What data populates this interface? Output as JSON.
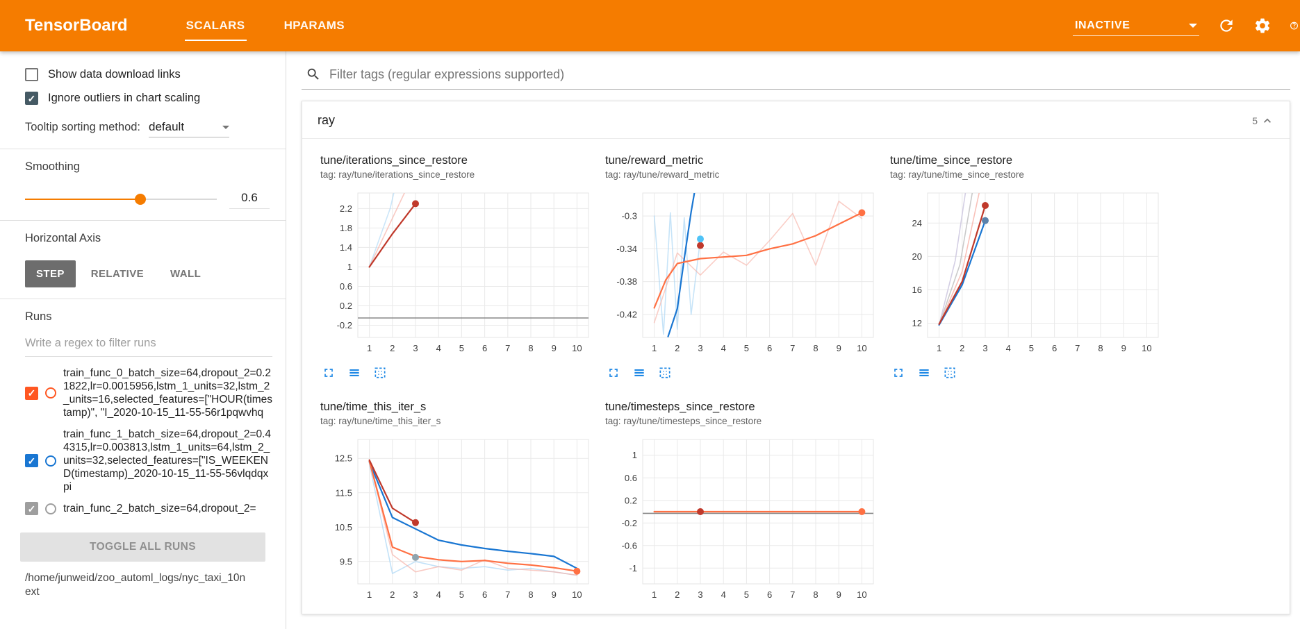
{
  "ui_colors": {
    "header_orange": "#f57c00",
    "accent_orange": "#ff7043",
    "icon_blue": "#1e88e5",
    "checkbox_dark": "#455a64"
  },
  "header": {
    "title": "TensorBoard",
    "tabs": [
      {
        "label": "SCALARS",
        "active": true
      },
      {
        "label": "HPARAMS",
        "active": false
      }
    ],
    "status_dropdown": "INACTIVE",
    "icons": [
      "chevron-down-icon",
      "refresh-icon",
      "settings-gear-icon",
      "help-icon"
    ]
  },
  "sidebar": {
    "show_download_links": {
      "label": "Show data download links",
      "checked": false
    },
    "ignore_outliers": {
      "label": "Ignore outliers in chart scaling",
      "checked": true
    },
    "tooltip_sorting": {
      "label": "Tooltip sorting method:",
      "value": "default"
    },
    "smoothing": {
      "label": "Smoothing",
      "value": "0.6",
      "percent": 60
    },
    "horizontal_axis": {
      "label": "Horizontal Axis",
      "options": [
        "STEP",
        "RELATIVE",
        "WALL"
      ],
      "selected": "STEP"
    },
    "runs": {
      "label": "Runs",
      "filter_placeholder": "Write a regex to filter runs",
      "items": [
        {
          "name": "train_func_0_batch_size=64,dropout_2=0.21822,lr=0.0015956,lstm_1_units=32,lstm_2_units=16,selected_features=[\"HOUR(timestamp)\", \"I_2020-10-15_11-55-56r1pqwvhq",
          "checked": true,
          "color": "#ff5722"
        },
        {
          "name": "train_func_1_batch_size=64,dropout_2=0.44315,lr=0.003813,lstm_1_units=64,lstm_2_units=32,selected_features=[\"IS_WEEKEND(timestamp)_2020-10-15_11-55-56vlqdqxpi",
          "checked": true,
          "color": "#1976d2"
        },
        {
          "name": "train_func_2_batch_size=64,dropout_2=",
          "checked": true,
          "color": "#9e9e9e"
        }
      ],
      "toggle_all_label": "TOGGLE ALL RUNS",
      "log_path": "/home/junweid/zoo_automl_logs/nyc_taxi_10next"
    }
  },
  "main": {
    "filter_placeholder": "Filter tags (regular expressions supported)",
    "section": {
      "title": "ray",
      "count": "5"
    }
  },
  "chart_data": [
    {
      "type": "line",
      "title": "tune/iterations_since_restore",
      "tag": "tag: ray/tune/iterations_since_restore",
      "xlim": [
        0.5,
        10.5
      ],
      "ylim": [
        -0.45,
        2.52
      ],
      "xticks": [
        1,
        2,
        3,
        4,
        5,
        6,
        7,
        8,
        9,
        10
      ],
      "yticks": [
        -0.2,
        0.2,
        0.6,
        1,
        1.4,
        1.8,
        2.2
      ],
      "grid": true,
      "series": [
        {
          "name": "train_func_1 (raw)",
          "color": "#a9d6f5",
          "width": 1.6,
          "opacity": 0.6,
          "points": [
            [
              1,
              1
            ],
            [
              1.9,
              2.2
            ],
            [
              2.4,
              3.2
            ]
          ]
        },
        {
          "name": "train_func_0 (raw)",
          "color": "#f7b3a9",
          "width": 1.6,
          "opacity": 0.7,
          "points": [
            [
              1,
              1
            ],
            [
              2,
              2
            ],
            [
              3,
              3
            ]
          ]
        },
        {
          "name": "zero baseline",
          "color": "#888888",
          "width": 1.6,
          "opacity": 1,
          "points": [
            [
              0.5,
              -0.05
            ],
            [
              10.5,
              -0.05
            ]
          ]
        },
        {
          "name": "train_func_0",
          "color": "#c0392b",
          "width": 2.2,
          "opacity": 1,
          "points": [
            [
              1,
              1
            ],
            [
              2,
              1.68
            ],
            [
              3,
              2.3
            ]
          ]
        }
      ],
      "dots": [
        {
          "x": 3,
          "y": 2.3,
          "color": "#c0392b"
        }
      ]
    },
    {
      "type": "line",
      "title": "tune/reward_metric",
      "tag": "tag: ray/tune/reward_metric",
      "xlim": [
        0.5,
        10.5
      ],
      "ylim": [
        -0.448,
        -0.272
      ],
      "xticks": [
        1,
        2,
        3,
        4,
        5,
        6,
        7,
        8,
        9,
        10
      ],
      "yticks": [
        -0.42,
        -0.38,
        -0.34,
        -0.3
      ],
      "grid": true,
      "series": [
        {
          "name": "train_func_1 (raw)",
          "color": "#a9d6f5",
          "width": 1.6,
          "opacity": 0.65,
          "points": [
            [
              1,
              -0.3
            ],
            [
              1.4,
              -0.444
            ],
            [
              1.7,
              -0.296
            ],
            [
              2,
              -0.438
            ],
            [
              2.3,
              -0.302
            ],
            [
              2.6,
              -0.42
            ],
            [
              3,
              -0.328
            ]
          ]
        },
        {
          "name": "train_func_0 (raw)",
          "color": "#f7b3a9",
          "width": 1.6,
          "opacity": 0.65,
          "points": [
            [
              1,
              -0.43
            ],
            [
              2,
              -0.345
            ],
            [
              3,
              -0.372
            ],
            [
              4,
              -0.344
            ],
            [
              5,
              -0.36
            ],
            [
              6,
              -0.33
            ],
            [
              7,
              -0.297
            ],
            [
              8,
              -0.36
            ],
            [
              9,
              -0.282
            ],
            [
              10,
              -0.303
            ]
          ]
        },
        {
          "name": "train_func_1",
          "color": "#1976d2",
          "width": 2.2,
          "opacity": 1,
          "points": [
            [
              1.6,
              -0.447
            ],
            [
              2,
              -0.413
            ],
            [
              2.3,
              -0.352
            ],
            [
              2.6,
              -0.295
            ],
            [
              2.8,
              -0.262
            ]
          ]
        },
        {
          "name": "train_func_0",
          "color": "#ff7043",
          "width": 2.2,
          "opacity": 1,
          "points": [
            [
              1,
              -0.412
            ],
            [
              1.5,
              -0.378
            ],
            [
              2,
              -0.358
            ],
            [
              3,
              -0.352
            ],
            [
              4,
              -0.35
            ],
            [
              5,
              -0.348
            ],
            [
              6,
              -0.34
            ],
            [
              7,
              -0.334
            ],
            [
              8,
              -0.324
            ],
            [
              9,
              -0.31
            ],
            [
              10,
              -0.296
            ]
          ]
        }
      ],
      "dots": [
        {
          "x": 3,
          "y": -0.336,
          "color": "#c0392b"
        },
        {
          "x": 3,
          "y": -0.328,
          "color": "#4fc3f7"
        },
        {
          "x": 10,
          "y": -0.296,
          "color": "#ff7043"
        }
      ]
    },
    {
      "type": "line",
      "title": "tune/time_since_restore",
      "tag": "tag: ray/tune/time_since_restore",
      "xlim": [
        0.5,
        10.5
      ],
      "ylim": [
        10.3,
        27.6
      ],
      "xticks": [
        1,
        2,
        3,
        4,
        5,
        6,
        7,
        8,
        9,
        10
      ],
      "yticks": [
        12,
        16,
        20,
        24
      ],
      "grid": true,
      "series": [
        {
          "name": "raw a",
          "color": "#c9c3dd",
          "width": 1.6,
          "opacity": 0.8,
          "points": [
            [
              1,
              11.8
            ],
            [
              1.7,
              19.5
            ],
            [
              2.15,
              27.8
            ]
          ]
        },
        {
          "name": "raw b",
          "color": "#bdbdbd",
          "width": 1.6,
          "opacity": 0.8,
          "points": [
            [
              1,
              11.8
            ],
            [
              1.9,
              19
            ],
            [
              2.45,
              27.8
            ]
          ]
        },
        {
          "name": "raw c",
          "color": "#f7b3a9",
          "width": 1.6,
          "opacity": 0.8,
          "points": [
            [
              1,
              11.8
            ],
            [
              2,
              18.2
            ],
            [
              2.75,
              27.8
            ]
          ]
        },
        {
          "name": "train_func_1",
          "color": "#1976d2",
          "width": 2.2,
          "opacity": 1,
          "points": [
            [
              1,
              11.8
            ],
            [
              2,
              16.6
            ],
            [
              3,
              24.3
            ]
          ]
        },
        {
          "name": "train_func_0",
          "color": "#c0392b",
          "width": 2.2,
          "opacity": 1,
          "points": [
            [
              1,
              11.9
            ],
            [
              2,
              17
            ],
            [
              3,
              26.1
            ]
          ]
        }
      ],
      "dots": [
        {
          "x": 3,
          "y": 26.1,
          "color": "#c0392b"
        },
        {
          "x": 3,
          "y": 24.3,
          "color": "#5b82ab"
        }
      ]
    },
    {
      "type": "line",
      "title": "tune/time_this_iter_s",
      "tag": "tag: ray/tune/time_this_iter_s",
      "xlim": [
        0.5,
        10.5
      ],
      "ylim": [
        8.85,
        13.05
      ],
      "xticks": [
        1,
        2,
        3,
        4,
        5,
        6,
        7,
        8,
        9,
        10
      ],
      "yticks": [
        9.5,
        10.5,
        11.5,
        12.5
      ],
      "grid": true,
      "series": [
        {
          "name": "train_func_1 (raw)",
          "color": "#a9d6f5",
          "width": 1.6,
          "opacity": 0.7,
          "points": [
            [
              1,
              12.35
            ],
            [
              2,
              9.15
            ],
            [
              3,
              9.5
            ],
            [
              4,
              9.35
            ],
            [
              5,
              9.3
            ],
            [
              6,
              9.35
            ],
            [
              7,
              9.25
            ],
            [
              8,
              9.3
            ],
            [
              9,
              9.2
            ],
            [
              10,
              9.1
            ]
          ]
        },
        {
          "name": "train_func_0 (raw)",
          "color": "#f7b3a9",
          "width": 1.6,
          "opacity": 0.7,
          "points": [
            [
              1,
              12.45
            ],
            [
              2,
              9.7
            ],
            [
              3,
              9.2
            ],
            [
              4,
              9.35
            ],
            [
              5,
              9.25
            ],
            [
              6,
              9.55
            ],
            [
              7,
              9.3
            ],
            [
              8,
              9.25
            ],
            [
              9,
              9.2
            ],
            [
              10,
              9.1
            ]
          ]
        },
        {
          "name": "train_func_1",
          "color": "#1976d2",
          "width": 2.2,
          "opacity": 1,
          "points": [
            [
              1,
              12.4
            ],
            [
              2,
              10.78
            ],
            [
              3,
              10.45
            ],
            [
              4,
              10.12
            ],
            [
              5,
              9.98
            ],
            [
              6,
              9.88
            ],
            [
              7,
              9.8
            ],
            [
              8,
              9.73
            ],
            [
              9,
              9.65
            ],
            [
              10,
              9.3
            ]
          ]
        },
        {
          "name": "train_func_0",
          "color": "#ff7043",
          "width": 2.2,
          "opacity": 1,
          "points": [
            [
              1,
              12.42
            ],
            [
              2,
              9.92
            ],
            [
              3,
              9.65
            ],
            [
              4,
              9.55
            ],
            [
              5,
              9.5
            ],
            [
              6,
              9.53
            ],
            [
              7,
              9.45
            ],
            [
              8,
              9.4
            ],
            [
              9,
              9.32
            ],
            [
              10,
              9.22
            ]
          ]
        },
        {
          "name": "train_func_0 selected",
          "color": "#c0392b",
          "width": 2.2,
          "opacity": 1,
          "points": [
            [
              1,
              12.45
            ],
            [
              2,
              11.05
            ],
            [
              3,
              10.63
            ]
          ]
        }
      ],
      "dots": [
        {
          "x": 3,
          "y": 10.63,
          "color": "#c0392b"
        },
        {
          "x": 3,
          "y": 9.62,
          "color": "#90a4ae"
        },
        {
          "x": 10,
          "y": 9.22,
          "color": "#ff7043"
        }
      ]
    },
    {
      "type": "line",
      "title": "tune/timesteps_since_restore",
      "tag": "tag: ray/tune/timesteps_since_restore",
      "xlim": [
        0.5,
        10.5
      ],
      "ylim": [
        -1.28,
        1.28
      ],
      "xticks": [
        1,
        2,
        3,
        4,
        5,
        6,
        7,
        8,
        9,
        10
      ],
      "yticks": [
        -1,
        -0.6,
        -0.2,
        0.2,
        0.6,
        1
      ],
      "grid": true,
      "series": [
        {
          "name": "zero baseline",
          "color": "#888888",
          "width": 1.6,
          "opacity": 1,
          "points": [
            [
              0.5,
              -0.03
            ],
            [
              10.5,
              -0.03
            ]
          ]
        },
        {
          "name": "train_func_0",
          "color": "#ff7043",
          "width": 2.2,
          "opacity": 1,
          "points": [
            [
              1,
              0
            ],
            [
              10,
              0
            ]
          ]
        }
      ],
      "dots": [
        {
          "x": 3,
          "y": 0,
          "color": "#c0392b"
        },
        {
          "x": 10,
          "y": 0,
          "color": "#ff7043"
        }
      ]
    }
  ]
}
